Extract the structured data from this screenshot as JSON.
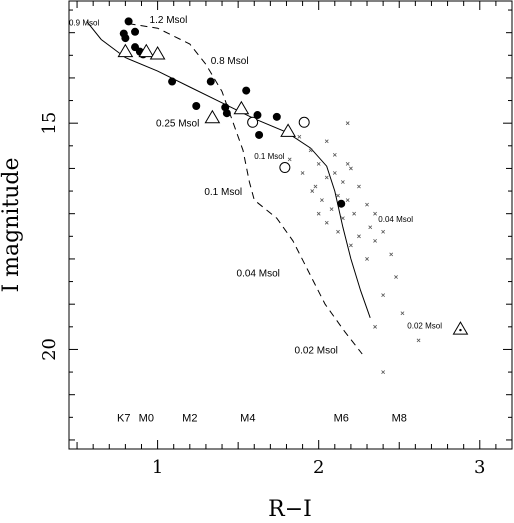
{
  "chart_data": {
    "type": "scatter",
    "title": "",
    "xlabel": "R−I",
    "ylabel": "I magnitude",
    "xlim": [
      0.45,
      3.2
    ],
    "ylim": [
      22.2,
      12.3
    ],
    "y_inverted": true,
    "grid": false,
    "x_ticks": [
      1,
      2,
      3
    ],
    "x_tick_labels": [
      "1",
      "2",
      "3"
    ],
    "y_ticks": [
      15,
      20
    ],
    "y_tick_labels": [
      "15",
      "20"
    ],
    "series": [
      {
        "marker": "filled-circle",
        "points": [
          [
            0.82,
            12.75
          ],
          [
            0.86,
            12.98
          ],
          [
            0.79,
            13.02
          ],
          [
            0.8,
            13.12
          ],
          [
            0.86,
            13.32
          ],
          [
            0.89,
            13.42
          ],
          [
            0.91,
            13.48
          ],
          [
            1.09,
            14.08
          ],
          [
            1.33,
            14.08
          ],
          [
            1.55,
            14.28
          ],
          [
            1.24,
            14.62
          ],
          [
            1.42,
            14.65
          ],
          [
            1.43,
            14.78
          ],
          [
            1.62,
            14.82
          ],
          [
            1.74,
            14.86
          ],
          [
            1.63,
            15.26
          ],
          [
            2.14,
            16.78
          ]
        ]
      },
      {
        "marker": "open-circle",
        "points": [
          [
            1.59,
            14.98
          ],
          [
            1.91,
            14.98
          ],
          [
            1.79,
            15.98
          ]
        ]
      },
      {
        "marker": "open-triangle",
        "points": [
          [
            0.8,
            13.42
          ],
          [
            0.93,
            13.42
          ],
          [
            1.0,
            13.47
          ],
          [
            1.34,
            14.88
          ],
          [
            1.52,
            14.68
          ],
          [
            1.81,
            15.18
          ],
          [
            2.88,
            19.55
          ]
        ]
      },
      {
        "marker": "cross",
        "points": [
          [
            1.88,
            15.3
          ],
          [
            2.05,
            15.4
          ],
          [
            1.95,
            15.6
          ],
          [
            2.1,
            15.7
          ],
          [
            1.82,
            15.8
          ],
          [
            2.0,
            15.9
          ],
          [
            2.18,
            15.9
          ],
          [
            1.9,
            16.1
          ],
          [
            2.05,
            16.2
          ],
          [
            2.2,
            16.0
          ],
          [
            2.15,
            16.3
          ],
          [
            1.98,
            16.4
          ],
          [
            2.25,
            16.4
          ],
          [
            2.12,
            16.6
          ],
          [
            2.02,
            16.7
          ],
          [
            2.18,
            16.7
          ],
          [
            2.3,
            16.8
          ],
          [
            2.08,
            16.9
          ],
          [
            2.0,
            17.0
          ],
          [
            2.22,
            17.0
          ],
          [
            2.35,
            17.0
          ],
          [
            2.15,
            17.1
          ],
          [
            2.05,
            17.2
          ],
          [
            2.32,
            17.3
          ],
          [
            2.4,
            17.4
          ],
          [
            2.12,
            17.4
          ],
          [
            2.25,
            17.5
          ],
          [
            2.35,
            17.6
          ],
          [
            2.2,
            17.7
          ],
          [
            2.45,
            17.9
          ],
          [
            2.3,
            18.0
          ],
          [
            2.48,
            18.4
          ],
          [
            2.4,
            18.8
          ],
          [
            2.52,
            19.2
          ],
          [
            2.35,
            19.5
          ],
          [
            2.62,
            19.8
          ],
          [
            2.4,
            20.5
          ],
          [
            2.18,
            15.0
          ],
          [
            1.96,
            16.5
          ],
          [
            2.1,
            16.1
          ]
        ]
      }
    ],
    "curves": [
      {
        "style": "solid",
        "points": [
          [
            0.56,
            12.75
          ],
          [
            0.65,
            13.15
          ],
          [
            0.8,
            13.55
          ],
          [
            1.0,
            13.85
          ],
          [
            1.2,
            14.2
          ],
          [
            1.4,
            14.55
          ],
          [
            1.6,
            14.9
          ],
          [
            1.8,
            15.2
          ],
          [
            1.95,
            15.55
          ],
          [
            2.05,
            15.95
          ],
          [
            2.1,
            16.5
          ],
          [
            2.15,
            17.3
          ],
          [
            2.2,
            18.0
          ],
          [
            2.26,
            18.7
          ],
          [
            2.32,
            19.3
          ]
        ]
      },
      {
        "style": "dashed",
        "points": [
          [
            0.82,
            12.8
          ],
          [
            1.0,
            12.9
          ],
          [
            1.2,
            13.25
          ],
          [
            1.3,
            13.7
          ],
          [
            1.4,
            14.3
          ],
          [
            1.46,
            14.9
          ],
          [
            1.53,
            15.6
          ],
          [
            1.57,
            16.3
          ],
          [
            1.6,
            16.7
          ],
          [
            1.74,
            17.1
          ],
          [
            1.84,
            17.6
          ],
          [
            1.94,
            18.3
          ],
          [
            2.04,
            19.0
          ],
          [
            2.16,
            19.6
          ],
          [
            2.27,
            20.1
          ]
        ]
      }
    ],
    "annotations": [
      {
        "text": "0.9 Msol",
        "x": 0.45,
        "y": 12.75,
        "size": "small"
      },
      {
        "text": "1.2 Msol",
        "x": 0.95,
        "y": 12.7,
        "size": "normal"
      },
      {
        "text": "0.8 Msol",
        "x": 1.33,
        "y": 13.6,
        "size": "normal"
      },
      {
        "text": "0.25 Msol",
        "x": 0.99,
        "y": 14.98,
        "size": "normal"
      },
      {
        "text": "0.1 Msol",
        "x": 1.6,
        "y": 15.7,
        "size": "small"
      },
      {
        "text": "0.1 Msol",
        "x": 1.29,
        "y": 16.5,
        "size": "normal"
      },
      {
        "text": "0.04 Msol",
        "x": 2.37,
        "y": 17.1,
        "size": "small"
      },
      {
        "text": "0.04 Msol",
        "x": 1.49,
        "y": 18.3,
        "size": "normal"
      },
      {
        "text": "0.02 Msol",
        "x": 2.55,
        "y": 19.45,
        "size": "small"
      },
      {
        "text": "0.02 Msol",
        "x": 1.85,
        "y": 20.0,
        "size": "normal"
      }
    ],
    "spectral_types": [
      {
        "label": "K7",
        "x": 0.79
      },
      {
        "label": "M0",
        "x": 0.93
      },
      {
        "label": "M2",
        "x": 1.2
      },
      {
        "label": "M4",
        "x": 1.56
      },
      {
        "label": "M6",
        "x": 2.14
      },
      {
        "label": "M8",
        "x": 2.5
      }
    ],
    "spectral_type_y": 21.5
  }
}
